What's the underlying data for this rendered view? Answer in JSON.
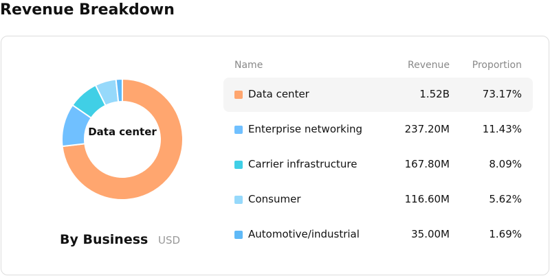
{
  "chart_data": {
    "type": "pie",
    "title": "Revenue Breakdown",
    "subtitle": "By Business",
    "unit": "USD",
    "name_header": "Name",
    "categories": [
      "Data center",
      "Enterprise networking",
      "Carrier infrastructure",
      "Consumer",
      "Automotive/industrial"
    ],
    "colors": [
      "#ffa66f",
      "#70c0ff",
      "#40cfe6",
      "#96d9fb",
      "#5fb9f7"
    ],
    "highlight": 0,
    "series": [
      {
        "name": "Revenue",
        "values": [
          1520000000,
          237200000,
          167800000,
          116600000,
          35000000
        ],
        "value_labels": [
          "1.52B",
          "237.20M",
          "167.80M",
          "116.60M",
          "35.00M"
        ]
      },
      {
        "name": "Proportion",
        "values": [
          73.17,
          11.43,
          8.09,
          5.62,
          1.69
        ],
        "value_labels": [
          "73.17%",
          "11.43%",
          "8.09%",
          "5.62%",
          "1.69%"
        ]
      }
    ]
  }
}
